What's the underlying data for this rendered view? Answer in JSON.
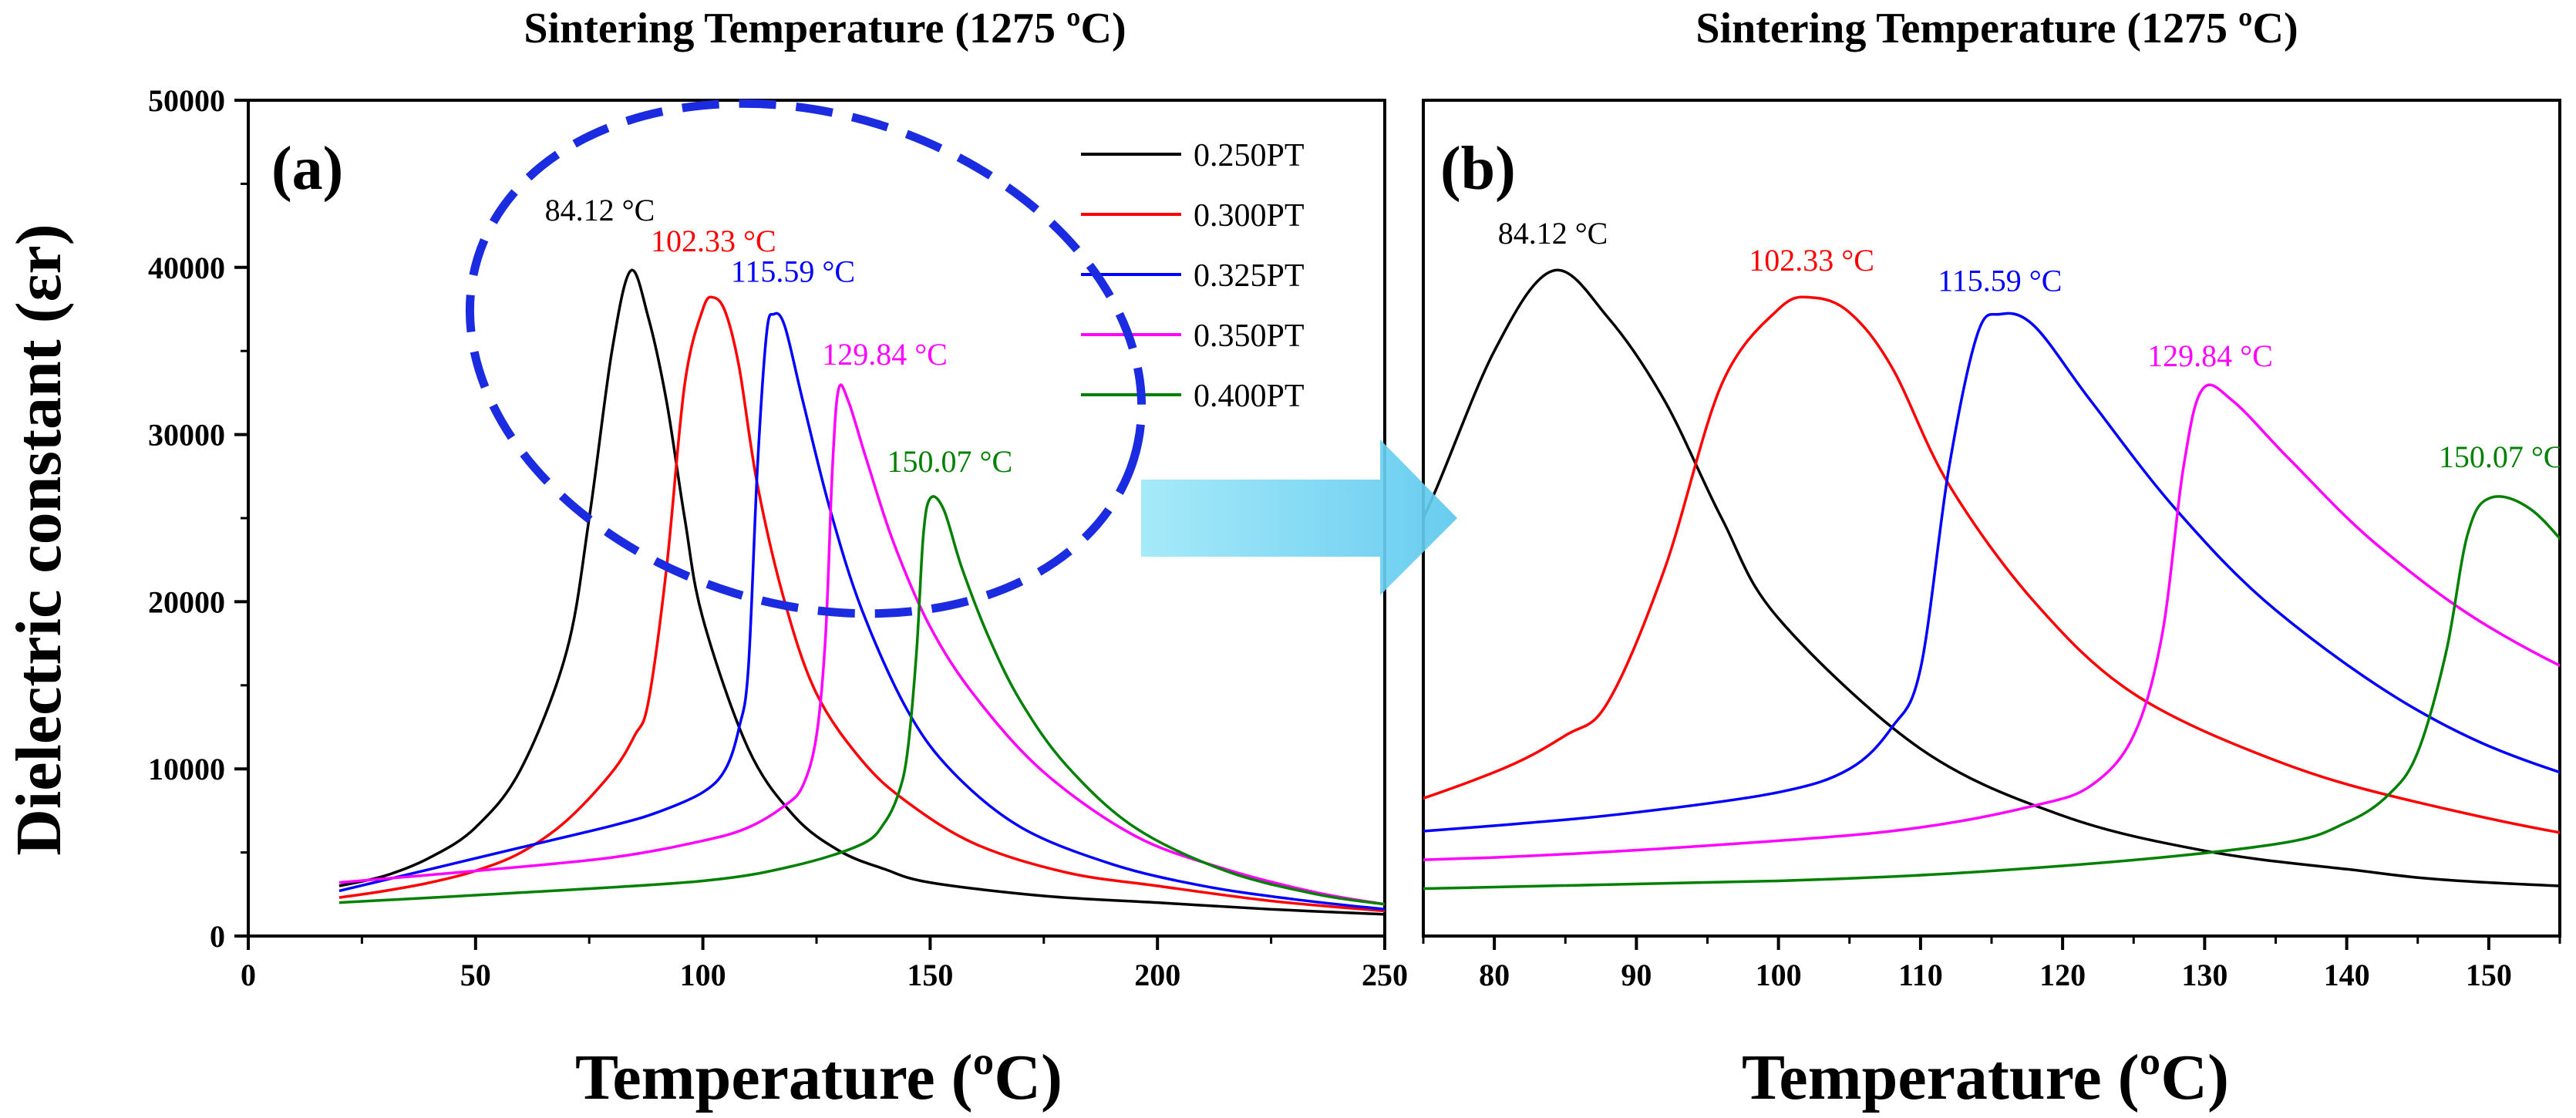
{
  "chart_data": [
    {
      "panel": "(a)",
      "type": "line",
      "title": "Sintering Temperature (1275 ºC)",
      "xlabel": "Temperature (ºC)",
      "ylabel": "Dielectric constant (εr)",
      "xlim": [
        0,
        250
      ],
      "ylim": [
        0,
        50000
      ],
      "xticks": [
        0,
        50,
        100,
        150,
        200,
        250
      ],
      "yticks": [
        0,
        10000,
        20000,
        30000,
        40000,
        50000
      ],
      "legend": "top-right",
      "series": [
        {
          "name": "0.250PT",
          "color": "#000000",
          "peak_label": "84.12 °C",
          "x": [
            20,
            30,
            40,
            50,
            60,
            70,
            75,
            80,
            84.12,
            88,
            92,
            96,
            100,
            110,
            120,
            130,
            140,
            150,
            175,
            200,
            225,
            250
          ],
          "y": [
            3000,
            3600,
            4700,
            6500,
            10000,
            17000,
            25000,
            35000,
            39800,
            37000,
            32000,
            25000,
            19000,
            11200,
            7200,
            5100,
            4000,
            3200,
            2400,
            2000,
            1600,
            1300
          ]
        },
        {
          "name": "0.300PT",
          "color": "#ff0000",
          "peak_label": "102.33 °C",
          "x": [
            20,
            30,
            40,
            50,
            60,
            70,
            80,
            85,
            88,
            92,
            96,
            100,
            102.33,
            105,
            108,
            112,
            118,
            125,
            135,
            145,
            160,
            180,
            200,
            225,
            250
          ],
          "y": [
            2300,
            2700,
            3200,
            3900,
            5000,
            6900,
            9800,
            12000,
            14000,
            22000,
            33000,
            37500,
            38200,
            37300,
            34000,
            27000,
            20000,
            14500,
            10500,
            8000,
            5500,
            3800,
            3000,
            2100,
            1500
          ]
        },
        {
          "name": "0.325PT",
          "color": "#0000ff",
          "peak_label": "115.59 °C",
          "x": [
            20,
            40,
            60,
            80,
            90,
            100,
            105,
            108,
            110,
            112,
            114,
            115.59,
            118,
            122,
            128,
            135,
            145,
            155,
            170,
            190,
            210,
            230,
            250
          ],
          "y": [
            2700,
            4000,
            5300,
            6600,
            7400,
            8600,
            10000,
            12500,
            16000,
            28000,
            36000,
            37200,
            36500,
            32000,
            25500,
            19500,
            13500,
            9800,
            6500,
            4300,
            3000,
            2200,
            1600
          ]
        },
        {
          "name": "0.350PT",
          "color": "#ff00ff",
          "peak_label": "129.84 °C",
          "x": [
            20,
            50,
            80,
            100,
            110,
            118,
            122,
            125,
            127,
            128.5,
            129.84,
            132,
            136,
            142,
            150,
            160,
            175,
            195,
            215,
            235,
            250
          ],
          "y": [
            3200,
            3900,
            4700,
            5700,
            6500,
            7800,
            9000,
            12000,
            18000,
            28000,
            32700,
            32000,
            28500,
            23500,
            18500,
            14300,
            9800,
            6000,
            4000,
            2600,
            1900
          ]
        },
        {
          "name": "0.400PT",
          "color": "#008000",
          "peak_label": "150.07 °C",
          "x": [
            20,
            60,
            100,
            120,
            135,
            140,
            143,
            145,
            147,
            148.5,
            150.07,
            153,
            157,
            163,
            170,
            180,
            195,
            215,
            235,
            250
          ],
          "y": [
            2000,
            2600,
            3300,
            4200,
            5500,
            6800,
            8500,
            11000,
            17000,
            24000,
            26200,
            25500,
            22000,
            17800,
            14000,
            10200,
            6500,
            3900,
            2500,
            1900
          ]
        }
      ]
    },
    {
      "panel": "(b)",
      "type": "line",
      "title": "Sintering Temperature (1275 ºC)",
      "xlabel": "Temperature (ºC)",
      "ylabel": "",
      "xlim": [
        75,
        155
      ],
      "ylim": [
        0,
        50000
      ],
      "xticks": [
        80,
        90,
        100,
        110,
        120,
        130,
        140,
        150
      ],
      "peak_labels": [
        "84.12 °C",
        "102.33 °C",
        "115.59 °C",
        "129.84 °C",
        "150.07 °C"
      ],
      "note": "Zoomed view of panel (a) over 75–155 °C; same five series."
    }
  ],
  "annotations": {
    "ellipse": "dashed blue ellipse around the peaks in (a)",
    "arrow": "light-blue arrow from (a) to (b)"
  }
}
